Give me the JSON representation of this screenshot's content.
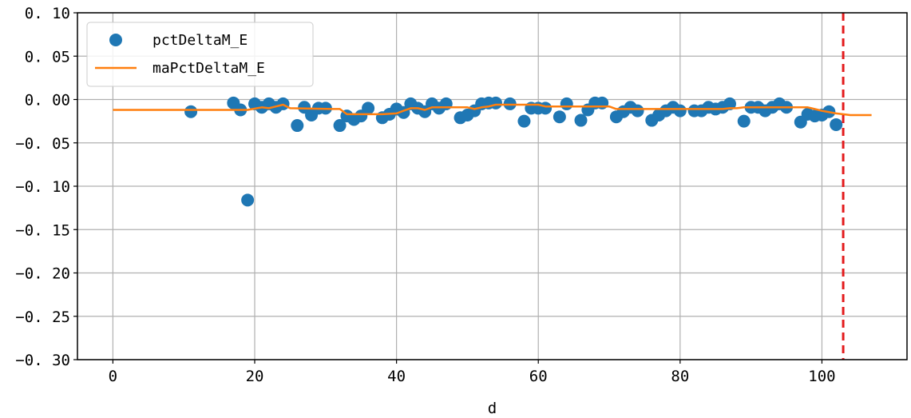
{
  "chart_data": {
    "type": "scatter",
    "xlabel": "d",
    "ylabel": "",
    "xlim": [
      -5,
      112
    ],
    "ylim": [
      -0.3,
      0.1
    ],
    "xticks": [
      0,
      20,
      40,
      60,
      80,
      100
    ],
    "xtick_labels": [
      "0",
      "20",
      "40",
      "60",
      "80",
      "100"
    ],
    "yticks": [
      0.1,
      0.05,
      0.0,
      -0.05,
      -0.1,
      -0.15,
      -0.2,
      -0.25,
      -0.3
    ],
    "ytick_labels": [
      "0. 10",
      "0. 05",
      "0. 00",
      "−0. 05",
      "−0. 10",
      "−0. 15",
      "−0. 20",
      "−0. 25",
      "−0. 30"
    ],
    "grid": true,
    "legend_position": "top-left",
    "series": [
      {
        "name": "pctDeltaM_E",
        "type": "scatter",
        "color": "#1f77b4",
        "points": [
          [
            11,
            -0.014
          ],
          [
            17,
            -0.004
          ],
          [
            18,
            -0.012
          ],
          [
            19,
            -0.116
          ],
          [
            20,
            -0.005
          ],
          [
            21,
            -0.009
          ],
          [
            22,
            -0.005
          ],
          [
            23,
            -0.009
          ],
          [
            24,
            -0.005
          ],
          [
            26,
            -0.03
          ],
          [
            27,
            -0.009
          ],
          [
            28,
            -0.018
          ],
          [
            29,
            -0.01
          ],
          [
            30,
            -0.01
          ],
          [
            32,
            -0.03
          ],
          [
            33,
            -0.019
          ],
          [
            34,
            -0.023
          ],
          [
            35,
            -0.019
          ],
          [
            36,
            -0.01
          ],
          [
            38,
            -0.021
          ],
          [
            39,
            -0.017
          ],
          [
            40,
            -0.011
          ],
          [
            41,
            -0.015
          ],
          [
            42,
            -0.005
          ],
          [
            43,
            -0.01
          ],
          [
            44,
            -0.014
          ],
          [
            45,
            -0.005
          ],
          [
            46,
            -0.01
          ],
          [
            47,
            -0.005
          ],
          [
            49,
            -0.021
          ],
          [
            50,
            -0.018
          ],
          [
            51,
            -0.013
          ],
          [
            52,
            -0.005
          ],
          [
            53,
            -0.004
          ],
          [
            54,
            -0.004
          ],
          [
            56,
            -0.005
          ],
          [
            58,
            -0.025
          ],
          [
            59,
            -0.01
          ],
          [
            60,
            -0.01
          ],
          [
            61,
            -0.01
          ],
          [
            63,
            -0.02
          ],
          [
            64,
            -0.005
          ],
          [
            66,
            -0.024
          ],
          [
            67,
            -0.012
          ],
          [
            68,
            -0.004
          ],
          [
            69,
            -0.004
          ],
          [
            71,
            -0.02
          ],
          [
            72,
            -0.014
          ],
          [
            73,
            -0.009
          ],
          [
            74,
            -0.013
          ],
          [
            76,
            -0.024
          ],
          [
            77,
            -0.018
          ],
          [
            78,
            -0.013
          ],
          [
            79,
            -0.009
          ],
          [
            80,
            -0.013
          ],
          [
            82,
            -0.013
          ],
          [
            83,
            -0.013
          ],
          [
            84,
            -0.009
          ],
          [
            85,
            -0.011
          ],
          [
            86,
            -0.009
          ],
          [
            87,
            -0.005
          ],
          [
            89,
            -0.025
          ],
          [
            90,
            -0.009
          ],
          [
            91,
            -0.009
          ],
          [
            92,
            -0.013
          ],
          [
            93,
            -0.009
          ],
          [
            94,
            -0.005
          ],
          [
            95,
            -0.009
          ],
          [
            97,
            -0.026
          ],
          [
            98,
            -0.017
          ],
          [
            99,
            -0.019
          ],
          [
            100,
            -0.018
          ],
          [
            101,
            -0.014
          ],
          [
            102,
            -0.029
          ]
        ]
      },
      {
        "name": "maPctDeltaM_E",
        "type": "line",
        "color": "#ff7f0e",
        "points": [
          [
            0,
            -0.012
          ],
          [
            17,
            -0.012
          ],
          [
            19,
            -0.012
          ],
          [
            21,
            -0.009
          ],
          [
            22,
            -0.01
          ],
          [
            23,
            -0.008
          ],
          [
            24,
            -0.006
          ],
          [
            25,
            -0.01
          ],
          [
            31,
            -0.011
          ],
          [
            32,
            -0.011
          ],
          [
            33,
            -0.017
          ],
          [
            38,
            -0.017
          ],
          [
            40,
            -0.016
          ],
          [
            41,
            -0.013
          ],
          [
            42,
            -0.01
          ],
          [
            43,
            -0.01
          ],
          [
            44,
            -0.012
          ],
          [
            45,
            -0.009
          ],
          [
            50,
            -0.009
          ],
          [
            51,
            -0.011
          ],
          [
            52,
            -0.009
          ],
          [
            53,
            -0.008
          ],
          [
            54,
            -0.006
          ],
          [
            60,
            -0.006
          ],
          [
            61,
            -0.008
          ],
          [
            70,
            -0.008
          ],
          [
            71,
            -0.011
          ],
          [
            86,
            -0.011
          ],
          [
            87,
            -0.01
          ],
          [
            88,
            -0.01
          ],
          [
            89,
            -0.009
          ],
          [
            98,
            -0.009
          ],
          [
            100,
            -0.013
          ],
          [
            102,
            -0.016
          ],
          [
            104,
            -0.018
          ],
          [
            107,
            -0.018
          ]
        ]
      }
    ],
    "vline": {
      "x": 103,
      "color": "#e31a1c",
      "style": "dashed"
    }
  }
}
